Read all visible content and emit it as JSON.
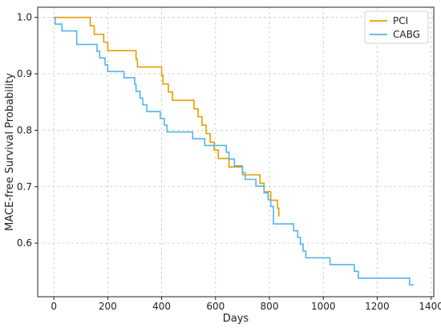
{
  "chart_data": {
    "type": "line",
    "step": true,
    "title": "",
    "xlabel": "Days",
    "ylabel": "MACE-free Survival Probability",
    "xlim": [
      -60,
      1410
    ],
    "ylim": [
      0.505,
      1.018
    ],
    "xticks": [
      0,
      200,
      400,
      600,
      800,
      1000,
      1200,
      1400
    ],
    "yticks": [
      0.6,
      0.7,
      0.8,
      0.9,
      1.0
    ],
    "xtick_labels": [
      "0",
      "200",
      "400",
      "600",
      "800",
      "1000",
      "1200",
      "1400"
    ],
    "ytick_labels": [
      "0.6",
      "0.7",
      "0.8",
      "0.9",
      "1.0"
    ],
    "grid": true,
    "legend_position": "top-right",
    "series": [
      {
        "name": "PCI",
        "color": "#E69F00",
        "x": [
          0,
          95,
          135,
          150,
          185,
          200,
          305,
          310,
          400,
          405,
          425,
          440,
          520,
          535,
          550,
          565,
          580,
          595,
          610,
          650,
          700,
          765,
          780,
          805,
          830,
          835
        ],
        "y": [
          1.0,
          1.0,
          0.985,
          0.97,
          0.956,
          0.941,
          0.926,
          0.912,
          0.897,
          0.882,
          0.868,
          0.853,
          0.838,
          0.824,
          0.809,
          0.794,
          0.779,
          0.765,
          0.75,
          0.735,
          0.721,
          0.706,
          0.691,
          0.676,
          0.662,
          0.647
        ]
      },
      {
        "name": "CABG",
        "color": "#56B4E9",
        "x": [
          0,
          5,
          30,
          85,
          160,
          170,
          190,
          200,
          260,
          300,
          305,
          320,
          330,
          345,
          395,
          410,
          420,
          515,
          560,
          640,
          650,
          670,
          700,
          710,
          750,
          780,
          795,
          805,
          815,
          890,
          905,
          915,
          925,
          935,
          1025,
          1115,
          1130,
          1320,
          1335
        ],
        "y": [
          1.0,
          0.988,
          0.976,
          0.952,
          0.94,
          0.928,
          0.916,
          0.904,
          0.893,
          0.881,
          0.869,
          0.857,
          0.845,
          0.833,
          0.821,
          0.809,
          0.797,
          0.785,
          0.773,
          0.761,
          0.749,
          0.737,
          0.725,
          0.713,
          0.701,
          0.689,
          0.677,
          0.665,
          0.634,
          0.622,
          0.61,
          0.598,
          0.586,
          0.574,
          0.562,
          0.55,
          0.538,
          0.526,
          0.526
        ]
      }
    ]
  }
}
